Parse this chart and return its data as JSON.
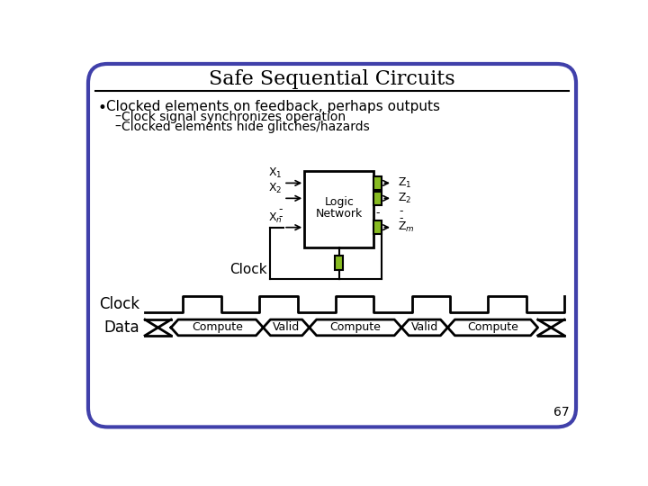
{
  "title": "Safe Sequential Circuits",
  "bg_color": "#FFFFFF",
  "border_color": "#4040AA",
  "bullet_text": "Clocked elements on feedback, perhaps outputs",
  "sub1": "Clock signal synchronizes operation",
  "sub2": "Clocked elements hide glitches/hazards",
  "clocked_box_color": "#88BB22",
  "clock_label": "Clock",
  "clock_waveform_label": "Clock",
  "data_label": "Data",
  "data_segments": [
    "Compute",
    "Valid",
    "Compute",
    "Valid",
    "Compute"
  ],
  "page_number": "67",
  "title_fontsize": 16,
  "body_fontsize": 11,
  "sub_fontsize": 10
}
